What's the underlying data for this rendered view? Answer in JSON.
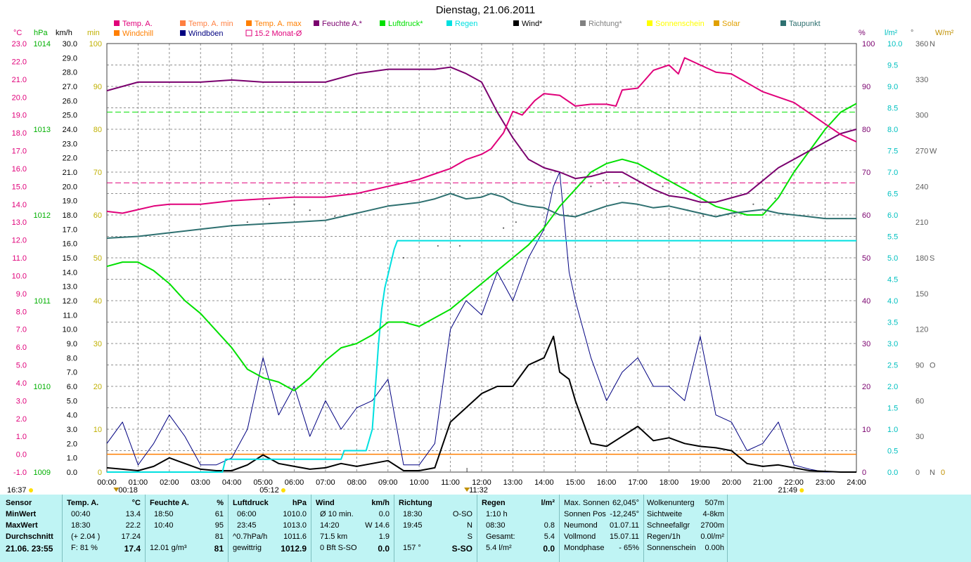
{
  "title": "Dienstag, 21.06.2011",
  "unit_labels": {
    "temp": "°C",
    "hpa": "hPa",
    "kmh": "km/h",
    "min": "min",
    "pct": "%",
    "lm2": "l/m²",
    "deg": "°",
    "wm2": "W/m²"
  },
  "legend": [
    {
      "label": "Temp. A.",
      "color": "#e0007a",
      "box": "fill"
    },
    {
      "label": "Temp. A. min",
      "color": "#ff7f40",
      "box": "fill"
    },
    {
      "label": "Temp. A. max",
      "color": "#ff7f00",
      "box": "fill"
    },
    {
      "label": "Feuchte A.*",
      "color": "#7a006e",
      "box": "fill"
    },
    {
      "label": "Luftdruck*",
      "color": "#00e000",
      "box": "fill"
    },
    {
      "label": "Regen",
      "color": "#00e0e0",
      "box": "fill"
    },
    {
      "label": "Wind*",
      "color": "#000000",
      "box": "fill"
    },
    {
      "label": "Richtung*",
      "color": "#808080",
      "box": "fill"
    },
    {
      "label": "Sonnenschein",
      "color": "#ffff00",
      "box": "fill"
    },
    {
      "label": "Solar",
      "color": "#e0a000",
      "box": "fill"
    },
    {
      "label": "Taupunkt",
      "color": "#2e7070",
      "box": "fill"
    },
    {
      "label": "Windchill",
      "color": "#ff7f00",
      "box": "fill"
    },
    {
      "label": "Windböen",
      "color": "#000080",
      "box": "fill"
    },
    {
      "label": "15.2 Monat-Ø",
      "color": "#e0007a",
      "box": "outline"
    }
  ],
  "axes": {
    "temp": [
      "23.0",
      "22.0",
      "21.0",
      "20.0",
      "19.0",
      "18.0",
      "17.0",
      "16.0",
      "15.0",
      "14.0",
      "13.0",
      "12.0",
      "11.0",
      "10.0",
      "9.0",
      "8.0",
      "7.0",
      "6.0",
      "5.0",
      "4.0",
      "3.0",
      "2.0",
      "1.0",
      "0.0",
      "-1.0"
    ],
    "hpa": [
      "1014",
      "1013",
      "1012",
      "1011",
      "1010",
      "1009"
    ],
    "kmh": [
      "30.0",
      "29.0",
      "28.0",
      "27.0",
      "26.0",
      "25.0",
      "24.0",
      "23.0",
      "22.0",
      "21.0",
      "20.0",
      "19.0",
      "18.0",
      "17.0",
      "16.0",
      "15.0",
      "14.0",
      "13.0",
      "12.0",
      "11.0",
      "10.0",
      "9.0",
      "8.0",
      "7.0",
      "6.0",
      "5.0",
      "4.0",
      "3.0",
      "2.0",
      "1.0",
      "0.0"
    ],
    "min": [
      "100",
      "90",
      "80",
      "70",
      "60",
      "50",
      "40",
      "30",
      "20",
      "10",
      "0"
    ],
    "pct": [
      "100",
      "90",
      "80",
      "70",
      "60",
      "50",
      "40",
      "30",
      "20",
      "10",
      "0"
    ],
    "lm2": [
      "10.0",
      "9.5",
      "9.0",
      "8.5",
      "8.0",
      "7.5",
      "7.0",
      "6.5",
      "6.0",
      "5.5",
      "5.0",
      "4.5",
      "4.0",
      "3.5",
      "3.0",
      "2.5",
      "2.0",
      "1.5",
      "1.0",
      "0.5",
      "0.0"
    ],
    "deg": [
      "360",
      "330",
      "300",
      "270",
      "240",
      "210",
      "180",
      "150",
      "120",
      "90",
      "60",
      "30",
      "0"
    ],
    "dir": [
      "N",
      "",
      "",
      "W",
      "",
      "",
      "S",
      "",
      "",
      "O",
      "",
      "",
      "N"
    ],
    "wm2": [
      "0"
    ],
    "hours": [
      "00:00",
      "01:00",
      "02:00",
      "03:00",
      "04:00",
      "05:00",
      "06:00",
      "07:00",
      "08:00",
      "09:00",
      "10:00",
      "11:00",
      "12:00",
      "13:00",
      "14:00",
      "15:00",
      "16:00",
      "17:00",
      "18:00",
      "19:00",
      "20:00",
      "21:00",
      "22:00",
      "23:00",
      "24:00"
    ]
  },
  "time_marks": {
    "left": "16:37",
    "sunrise": "05:12",
    "sunset": "21:49",
    "t1": "00:18",
    "t2": "11:32"
  },
  "chart_data": {
    "type": "line",
    "x_unit": "hours",
    "xlim": [
      0,
      24
    ],
    "series": [
      {
        "name": "Temp. A.",
        "axis": "°C",
        "color": "#e0007a",
        "x": [
          0,
          0.5,
          1,
          1.5,
          2,
          3,
          4,
          5,
          6,
          7,
          8,
          8.5,
          9,
          9.5,
          10,
          10.5,
          11,
          11.5,
          12,
          12.3,
          12.7,
          13,
          13.3,
          13.7,
          14,
          14.5,
          15,
          15.5,
          16,
          16.3,
          16.5,
          17,
          17.5,
          18,
          18.3,
          18.5,
          19,
          19.5,
          20,
          21,
          22,
          23,
          23.5,
          24
        ],
        "y": [
          13.6,
          13.5,
          13.7,
          13.9,
          14.0,
          14.0,
          14.2,
          14.3,
          14.4,
          14.4,
          14.6,
          14.8,
          15.0,
          15.2,
          15.4,
          15.7,
          16.0,
          16.5,
          16.8,
          17.1,
          18.0,
          19.2,
          19.0,
          19.8,
          20.2,
          20.1,
          19.5,
          19.6,
          19.6,
          19.5,
          20.4,
          20.5,
          21.5,
          21.8,
          21.3,
          22.2,
          21.8,
          21.4,
          21.3,
          20.3,
          19.7,
          18.5,
          17.9,
          17.5
        ]
      },
      {
        "name": "Feuchte A.*",
        "axis": "%",
        "color": "#7a006e",
        "x": [
          0,
          0.5,
          1,
          2,
          3,
          4,
          5,
          6,
          7,
          8,
          9,
          10,
          10.5,
          11,
          11.5,
          12,
          12.5,
          13,
          13.5,
          14,
          14.5,
          15,
          15.5,
          16,
          16.5,
          17,
          17.5,
          18,
          18.5,
          19,
          19.5,
          20,
          20.5,
          21,
          21.5,
          22,
          22.5,
          23,
          23.5,
          24
        ],
        "y": [
          89,
          90,
          91,
          91,
          91,
          91.5,
          91,
          91,
          91,
          93,
          94,
          94,
          94,
          94.5,
          93,
          91,
          84,
          78,
          73,
          71,
          70,
          68.5,
          69,
          70,
          70,
          68,
          66,
          64.5,
          64,
          63,
          63,
          64,
          65,
          68,
          71,
          73,
          75,
          77,
          79,
          80
        ]
      },
      {
        "name": "Luftdruck*",
        "axis": "hPa",
        "color": "#00e000",
        "x": [
          0,
          0.5,
          1,
          1.5,
          2,
          2.5,
          3,
          3.5,
          4,
          4.5,
          5,
          5.5,
          6,
          6.5,
          7,
          7.5,
          8,
          8.5,
          9,
          9.5,
          10,
          10.5,
          11,
          11.5,
          12,
          12.5,
          13,
          13.5,
          14,
          14.5,
          15,
          15.5,
          16,
          16.5,
          17,
          17.5,
          18,
          18.5,
          19,
          19.5,
          20,
          20.5,
          21,
          21.5,
          22,
          22.5,
          23,
          23.5,
          24
        ],
        "y": [
          1011.4,
          1011.45,
          1011.45,
          1011.35,
          1011.2,
          1011.0,
          1010.85,
          1010.65,
          1010.45,
          1010.2,
          1010.1,
          1010.05,
          1009.95,
          1010.1,
          1010.3,
          1010.45,
          1010.5,
          1010.6,
          1010.75,
          1010.75,
          1010.7,
          1010.8,
          1010.9,
          1011.05,
          1011.2,
          1011.35,
          1011.5,
          1011.65,
          1011.85,
          1012.1,
          1012.3,
          1012.5,
          1012.6,
          1012.65,
          1012.6,
          1012.5,
          1012.4,
          1012.3,
          1012.2,
          1012.1,
          1012.05,
          1012.0,
          1012.0,
          1012.2,
          1012.5,
          1012.75,
          1013.0,
          1013.2,
          1013.3
        ]
      },
      {
        "name": "Regen",
        "axis": "l/m²",
        "color": "#00e0e0",
        "x": [
          0,
          3.7,
          3.8,
          7.5,
          7.6,
          8.3,
          8.5,
          8.6,
          8.7,
          8.8,
          8.9,
          9.0,
          9.2,
          9.3,
          24
        ],
        "y": [
          0,
          0,
          0.3,
          0.3,
          0.5,
          0.5,
          1.0,
          2.0,
          3.0,
          3.8,
          4.3,
          4.6,
          5.2,
          5.4,
          5.4
        ]
      },
      {
        "name": "Taupunkt",
        "axis": "°C",
        "color": "#2e7070",
        "x": [
          0,
          1,
          2,
          3,
          4,
          5,
          6,
          7,
          8,
          9,
          10,
          10.5,
          11,
          11.5,
          12,
          12.3,
          12.7,
          13,
          13.5,
          14,
          14.5,
          15,
          15.5,
          16,
          16.5,
          17,
          17.5,
          18,
          18.5,
          19,
          19.5,
          20,
          20.5,
          21,
          21.5,
          22,
          22.5,
          23,
          23.5,
          24
        ],
        "y": [
          12.1,
          12.2,
          12.4,
          12.6,
          12.8,
          12.9,
          13.0,
          13.1,
          13.5,
          13.9,
          14.1,
          14.3,
          14.6,
          14.3,
          14.4,
          14.6,
          14.4,
          14.1,
          13.9,
          13.8,
          13.4,
          13.3,
          13.6,
          13.9,
          14.1,
          14.0,
          13.8,
          13.9,
          13.7,
          13.5,
          13.3,
          13.5,
          13.6,
          13.7,
          13.5,
          13.4,
          13.3,
          13.2,
          13.2,
          13.2
        ]
      },
      {
        "name": "Wind*",
        "axis": "km/h",
        "color": "#000000",
        "x": [
          0,
          0.5,
          1,
          1.5,
          2,
          2.5,
          3,
          3.5,
          4,
          4.5,
          5,
          5.5,
          6,
          6.5,
          7,
          7.5,
          8,
          8.5,
          9,
          9.5,
          10,
          10.5,
          11,
          11.5,
          12,
          12.5,
          13,
          13.5,
          14,
          14.3,
          14.5,
          14.8,
          15,
          15.5,
          16,
          16.5,
          17,
          17.5,
          18,
          18.5,
          19,
          19.5,
          20,
          20.5,
          21,
          21.5,
          22,
          22.5,
          23,
          23.5,
          24
        ],
        "y": [
          0.3,
          0.2,
          0.1,
          0.4,
          1.0,
          0.6,
          0.2,
          0.1,
          0.1,
          0.5,
          1.2,
          0.6,
          0.4,
          0.2,
          0.3,
          0.6,
          0.4,
          0.6,
          0.8,
          0.1,
          0.1,
          0.3,
          3.5,
          4.5,
          5.5,
          6.0,
          6.0,
          7.5,
          8.0,
          9.5,
          7.0,
          6.5,
          5.0,
          2.0,
          1.8,
          2.5,
          3.2,
          2.2,
          2.4,
          2.0,
          1.8,
          1.7,
          1.5,
          0.6,
          0.4,
          0.5,
          0.3,
          0.1,
          0.05,
          0.0,
          0.0
        ]
      },
      {
        "name": "Windböen",
        "axis": "km/h",
        "color": "#000080",
        "x": [
          0,
          0.5,
          1,
          1.5,
          2,
          2.5,
          3,
          3.5,
          4,
          4.5,
          5,
          5.5,
          6,
          6.5,
          7,
          7.5,
          8,
          8.5,
          9,
          9.5,
          10,
          10.5,
          11,
          11.5,
          12,
          12.5,
          13,
          13.5,
          14,
          14.3,
          14.5,
          14.8,
          15,
          15.5,
          16,
          16.5,
          17,
          17.5,
          18,
          18.5,
          19,
          19.5,
          20,
          20.5,
          21,
          21.5,
          22,
          22.5,
          23,
          23.5,
          24
        ],
        "y": [
          2.0,
          3.5,
          0.5,
          2.0,
          4.0,
          2.5,
          0.5,
          0.5,
          1.0,
          3.0,
          8.0,
          4.0,
          6.0,
          2.5,
          5.0,
          3.0,
          4.5,
          5.0,
          6.5,
          0.5,
          0.5,
          2.0,
          10.0,
          12.0,
          11.0,
          14.0,
          12.0,
          15.0,
          17.0,
          20.0,
          21.0,
          14.0,
          12.0,
          8.0,
          5.0,
          7.0,
          8.0,
          6.0,
          6.0,
          5.0,
          9.5,
          4.0,
          3.5,
          1.5,
          2.0,
          3.5,
          0.5,
          0.2,
          0.0,
          0.0,
          0.0
        ]
      },
      {
        "name": "Windchill",
        "axis": "°C",
        "color": "#ff7f00",
        "x": [
          0,
          24
        ],
        "y": [
          0,
          0
        ]
      }
    ],
    "reference_lines": [
      {
        "name": "15.2 Monat-Ø",
        "axis": "°C",
        "value": 15.2,
        "color": "#e0007a",
        "style": "dashed"
      },
      {
        "name": "Luftdruck ref",
        "axis": "hPa",
        "value": 1013.2,
        "color": "#00e000",
        "style": "dashed"
      }
    ],
    "direction_points": {
      "axis": "°",
      "x": [
        4.5,
        5.2,
        6.0,
        6.5,
        7.3,
        9.5,
        10.6,
        11.3,
        12.7,
        13.1,
        14.2,
        15.5,
        15.9,
        16.4,
        17.8,
        18.6,
        19.1,
        20.1,
        20.7,
        21.4
      ],
      "y": [
        210,
        225,
        225,
        220,
        215,
        180,
        190,
        190,
        205,
        210,
        235,
        240,
        245,
        240,
        240,
        220,
        215,
        215,
        225,
        230
      ]
    }
  },
  "stats": {
    "sensor": {
      "header": "Sensor",
      "rows": [
        "MinWert",
        "MaxWert",
        "Durchschnitt",
        "21.06. 23:55"
      ]
    },
    "temp": {
      "header": "Temp. A.",
      "unit": "°C",
      "min_time": "00:40",
      "min": "13.4",
      "max_time": "18:30",
      "max": "22.2",
      "avg_note": "(+ 2.04 )",
      "avg": "17.24",
      "cur_note": "F: 81 %",
      "cur": "17.4"
    },
    "humid": {
      "header": "Feuchte A.",
      "unit": "%",
      "min_time": "18:50",
      "min": "61",
      "max_time": "10:40",
      "max": "95",
      "avg": "81",
      "cur_note": "12.01 g/m³",
      "cur": "81"
    },
    "press": {
      "header": "Luftdruck",
      "unit": "hPa",
      "min_time": "06:00",
      "min": "1010.0",
      "max_time": "23:45",
      "max": "1013.0",
      "avg_note": "^0.7hPa/h",
      "avg": "1011.6",
      "cur_note": "gewittrig",
      "cur": "1012.9"
    },
    "wind": {
      "header": "Wind",
      "unit": "km/h",
      "r1a": "Ø 10 min.",
      "r1b": "0.0",
      "r2a": "14:20",
      "r2b": "W 14.6",
      "r3a": "71.5 km",
      "r3b": "1.9",
      "r4a": "0 Bft S-SO",
      "r4b": "0.0"
    },
    "dir": {
      "header": "Richtung",
      "r1a": "18:30",
      "r1b": "O-SO",
      "r2a": "19:45",
      "r2b": "N",
      "r3b": "S",
      "r4a": "157 °",
      "r4b": "S-SO"
    },
    "rain": {
      "header": "Regen",
      "unit": "l/m²",
      "r1a": "1:10 h",
      "r2a": "08:30",
      "r2b": "0.8",
      "r3a": "Gesamt:",
      "r3b": "5.4",
      "r4a": "5.4 l/m²",
      "r4b": "0.0"
    },
    "astro": {
      "r0a": "Max. Sonnen",
      "r0b": "62,045°",
      "r1a": "Sonnen Pos",
      "r1b": "-12,245°",
      "r2a": "Neumond",
      "r2b": "01.07.11",
      "r3a": "Vollmond",
      "r3b": "15.07.11",
      "r4a": "Mondphase",
      "r4b": "- 65%"
    },
    "sky": {
      "r0a": "Wolkenunterg",
      "r0b": "507m",
      "r1a": "Sichtweite",
      "r1b": "4-8km",
      "r2a": "Schneefallgr",
      "r2b": "2700m",
      "r3a": "Regen/1h",
      "r3b": "0.0l/m²",
      "r4a": "Sonnenschein",
      "r4b": "0.00h"
    }
  }
}
